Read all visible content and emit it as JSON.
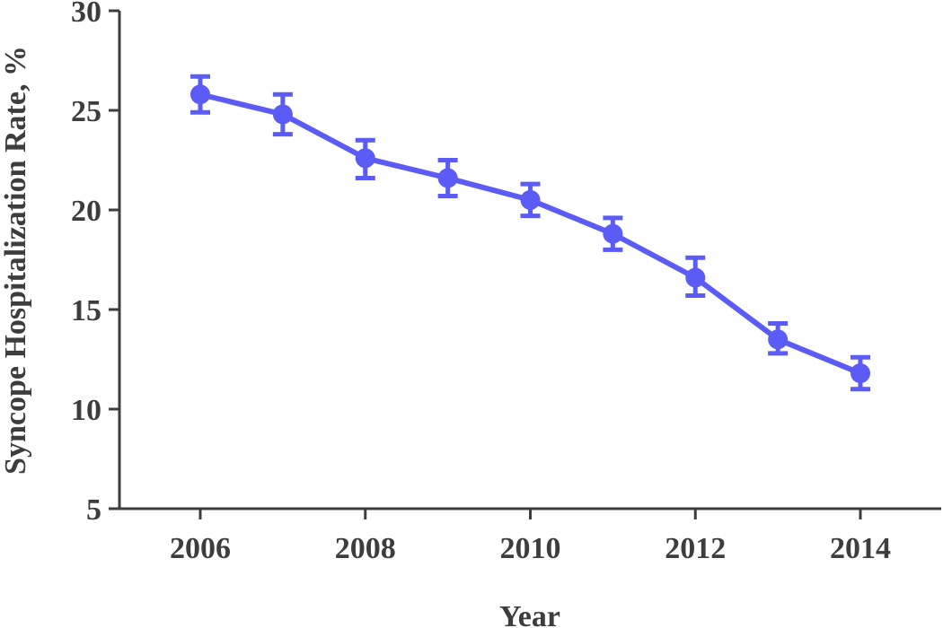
{
  "chart_data": {
    "type": "line",
    "xlabel": "Year",
    "ylabel": "Syncope Hospitalization Rate, %",
    "xlim": [
      2005,
      2015
    ],
    "ylim": [
      5,
      30
    ],
    "x_ticks": [
      2006,
      2008,
      2010,
      2012,
      2014
    ],
    "y_ticks": [
      5,
      10,
      15,
      20,
      25,
      30
    ],
    "grid": false,
    "legend": "none",
    "series": [
      {
        "color": "#5b5bf5",
        "points": [
          {
            "x": 2006,
            "y": 25.8,
            "err_low": 24.9,
            "err_high": 26.7
          },
          {
            "x": 2007,
            "y": 24.8,
            "err_low": 23.8,
            "err_high": 25.8
          },
          {
            "x": 2008,
            "y": 22.6,
            "err_low": 21.6,
            "err_high": 23.5
          },
          {
            "x": 2009,
            "y": 21.6,
            "err_low": 20.7,
            "err_high": 22.5
          },
          {
            "x": 2010,
            "y": 20.5,
            "err_low": 19.7,
            "err_high": 21.3
          },
          {
            "x": 2011,
            "y": 18.8,
            "err_low": 18.0,
            "err_high": 19.6
          },
          {
            "x": 2012,
            "y": 16.6,
            "err_low": 15.7,
            "err_high": 17.6
          },
          {
            "x": 2013,
            "y": 13.5,
            "err_low": 12.8,
            "err_high": 14.3
          },
          {
            "x": 2014,
            "y": 11.8,
            "err_low": 11.0,
            "err_high": 12.6
          }
        ]
      }
    ]
  }
}
